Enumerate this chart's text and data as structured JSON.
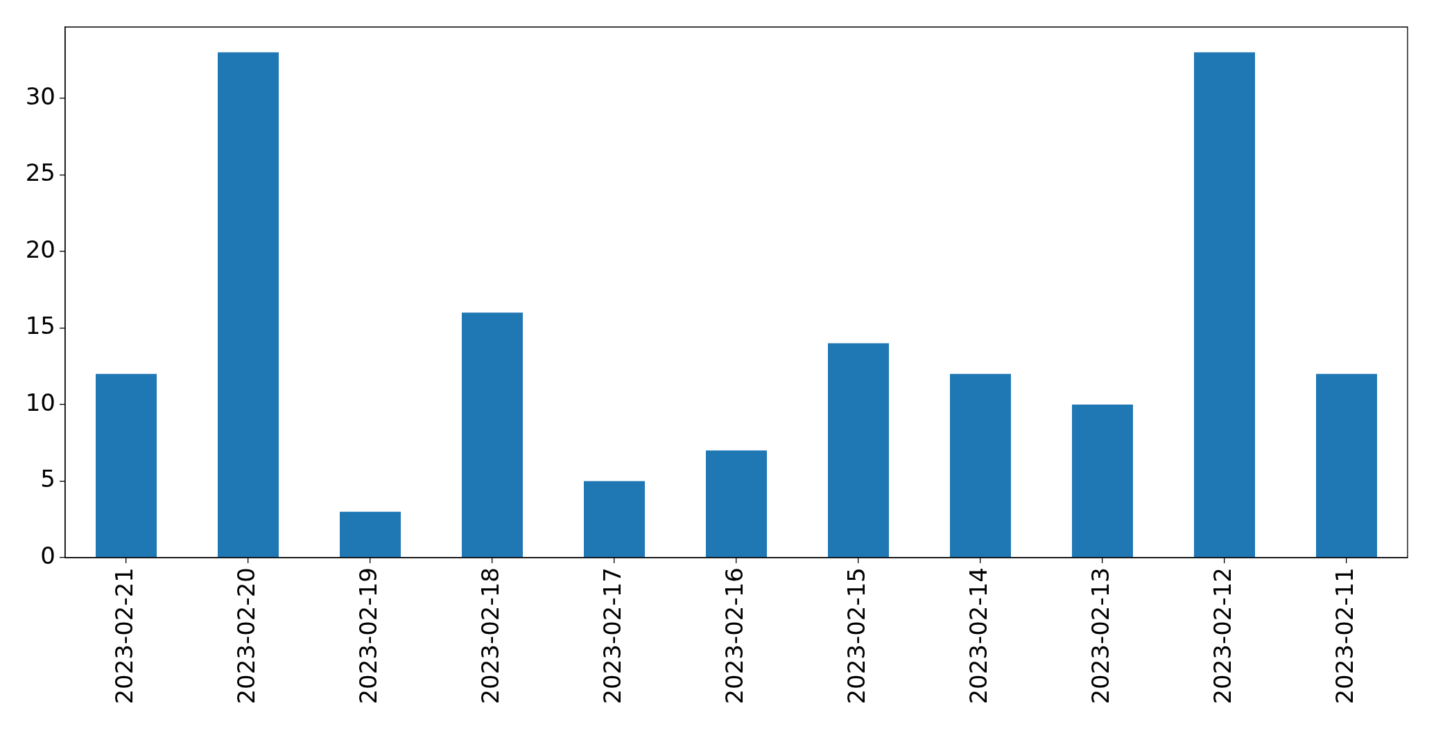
{
  "chart_data": {
    "type": "bar",
    "categories": [
      "2023-02-21",
      "2023-02-20",
      "2023-02-19",
      "2023-02-18",
      "2023-02-17",
      "2023-02-16",
      "2023-02-15",
      "2023-02-14",
      "2023-02-13",
      "2023-02-12",
      "2023-02-11"
    ],
    "values": [
      12,
      33,
      3,
      16,
      5,
      7,
      14,
      12,
      10,
      33,
      12
    ],
    "color": "#1f77b4",
    "ylim": [
      0,
      34.65
    ],
    "yticks": [
      0,
      5,
      10,
      15,
      20,
      25,
      30
    ],
    "grid": false,
    "legend": false
  }
}
